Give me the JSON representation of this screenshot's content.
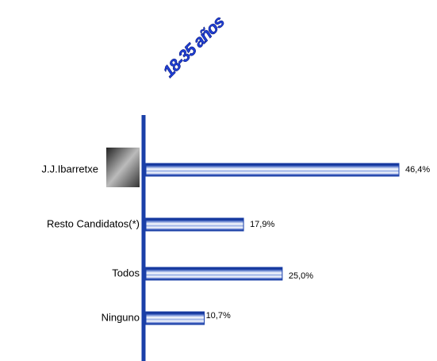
{
  "chart_data": {
    "type": "bar",
    "orientation": "horizontal",
    "title": "18-35 años",
    "categories": [
      "J.J.Ibarretxe",
      "Resto  Candidatos(*)",
      "Todos",
      "Ninguno"
    ],
    "values": [
      46.4,
      17.9,
      25.0,
      10.7
    ],
    "value_labels": [
      "46,4%",
      "17,9%",
      "25,0%",
      "10,7%"
    ],
    "color": "#1a3fa8"
  }
}
